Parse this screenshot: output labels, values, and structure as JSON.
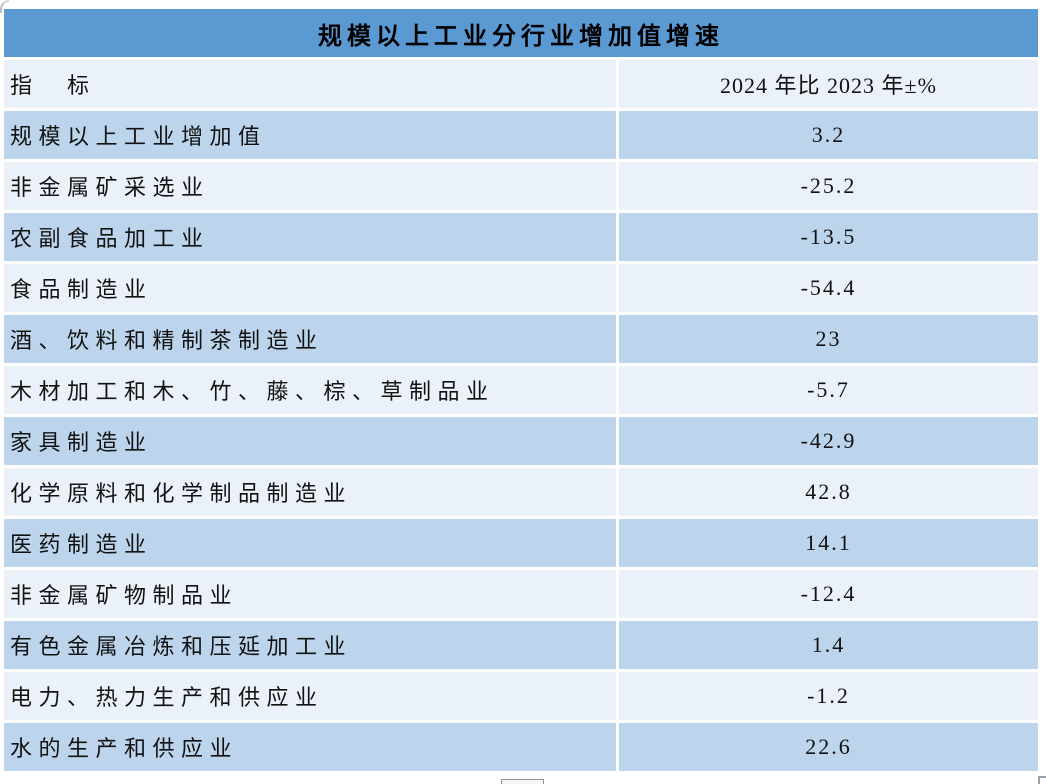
{
  "title": "规模以上工业分行业增加值增速",
  "header": {
    "indicator_label": "指　标",
    "value_label": "2024 年比 2023 年±%"
  },
  "rows": [
    {
      "label": "规模以上工业增加值",
      "value": "3.2"
    },
    {
      "label": "非金属矿采选业",
      "value": "-25.2"
    },
    {
      "label": "农副食品加工业",
      "value": "-13.5"
    },
    {
      "label": "食品制造业",
      "value": "-54.4"
    },
    {
      "label": "酒、饮料和精制茶制造业",
      "value": "23"
    },
    {
      "label": "木材加工和木、竹、藤、棕、草制品业",
      "value": "-5.7"
    },
    {
      "label": "家具制造业",
      "value": "-42.9"
    },
    {
      "label": "化学原料和化学制品制造业",
      "value": "42.8"
    },
    {
      "label": "医药制造业",
      "value": "14.1"
    },
    {
      "label": "非金属矿物制品业",
      "value": "-12.4"
    },
    {
      "label": "有色金属冶炼和压延加工业",
      "value": "1.4"
    },
    {
      "label": "电力、热力生产和供应业",
      "value": "-1.2"
    },
    {
      "label": "水的生产和供应业",
      "value": "22.6"
    }
  ],
  "colors": {
    "title_bar": "#5b99d3",
    "row_dark": "#bcd5ec",
    "row_light": "#eaf1f8",
    "text": "#121212"
  },
  "chart_data": {
    "type": "table",
    "title": "规模以上工业分行业增加值增速",
    "columns": [
      "指标",
      "2024 年比 2023 年±%"
    ],
    "categories": [
      "规模以上工业增加值",
      "非金属矿采选业",
      "农副食品加工业",
      "食品制造业",
      "酒、饮料和精制茶制造业",
      "木材加工和木、竹、藤、棕、草制品业",
      "家具制造业",
      "化学原料和化学制品制造业",
      "医药制造业",
      "非金属矿物制品业",
      "有色金属冶炼和压延加工业",
      "电力、热力生产和供应业",
      "水的生产和供应业"
    ],
    "values": [
      3.2,
      -25.2,
      -13.5,
      -54.4,
      23,
      -5.7,
      -42.9,
      42.8,
      14.1,
      -12.4,
      1.4,
      -1.2,
      22.6
    ]
  }
}
